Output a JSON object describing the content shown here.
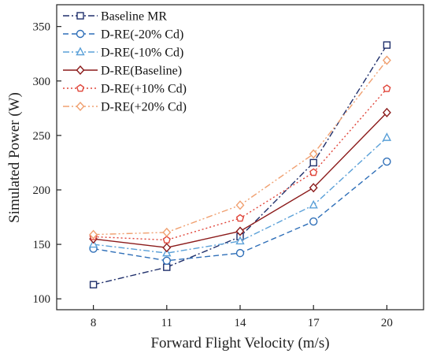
{
  "chart_data": {
    "type": "line",
    "x": [
      8,
      11,
      14,
      17,
      20
    ],
    "xlabel": "Forward Flight Velocity (m/s)",
    "ylabel": "Simulated Power (W)",
    "xlim": [
      6.5,
      21.5
    ],
    "ylim": [
      90,
      370
    ],
    "xticks": [
      8,
      11,
      14,
      17,
      20
    ],
    "yticks": [
      100,
      150,
      200,
      250,
      300,
      350
    ],
    "grid": false,
    "legend_position": "top-left",
    "series": [
      {
        "name": "Baseline MR",
        "values": [
          113,
          129,
          157,
          225,
          333
        ],
        "color": "#1f2f6b",
        "marker": "square",
        "dash": "dashdot"
      },
      {
        "name": "D-RE(-20% Cd)",
        "values": [
          146,
          135,
          142,
          171,
          226
        ],
        "color": "#2f6fb8",
        "marker": "circle",
        "dash": "dashed"
      },
      {
        "name": "D-RE(-10% Cd)",
        "values": [
          150,
          142,
          153,
          186,
          248
        ],
        "color": "#5aa0d8",
        "marker": "triangle",
        "dash": "dashdot"
      },
      {
        "name": "D-RE(Baseline)",
        "values": [
          155,
          147,
          162,
          202,
          271
        ],
        "color": "#8b1a1a",
        "marker": "diamond",
        "dash": "solid"
      },
      {
        "name": "D-RE(+10% Cd)",
        "values": [
          157,
          154,
          174,
          216,
          293
        ],
        "color": "#e0453a",
        "marker": "pentagon",
        "dash": "dotted"
      },
      {
        "name": "D-RE(+20% Cd)",
        "values": [
          159,
          161,
          186,
          233,
          319
        ],
        "color": "#f0a070",
        "marker": "diamond",
        "dash": "dashdotdot"
      }
    ]
  }
}
